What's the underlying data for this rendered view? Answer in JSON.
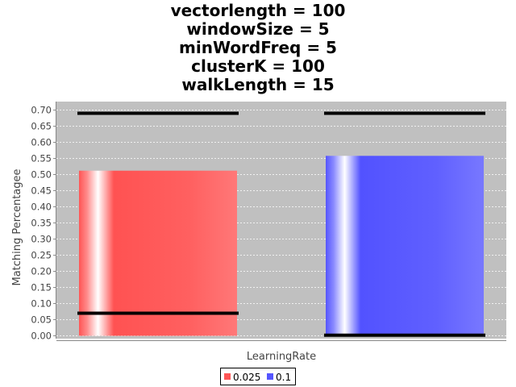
{
  "chart_data": {
    "type": "bar",
    "title_lines": [
      "vectorlength = 100",
      "windowSize = 5",
      "minWordFreq = 5",
      "clusterK = 100",
      "walkLength = 15"
    ],
    "xlabel": "LearningRate",
    "ylabel": "Matching Percentagee",
    "ylim": [
      0,
      0.72
    ],
    "yticks": [
      "0.00",
      "0.05",
      "0.10",
      "0.15",
      "0.20",
      "0.25",
      "0.30",
      "0.35",
      "0.40",
      "0.45",
      "0.50",
      "0.55",
      "0.60",
      "0.65",
      "0.70"
    ],
    "grid": true,
    "legend_position": "bottom",
    "series": [
      {
        "name": "0.025",
        "value": 0.512,
        "error_low": 0.07,
        "error_high": 0.69,
        "color": "#ff5555"
      },
      {
        "name": "0.1",
        "value": 0.558,
        "error_low": 0.002,
        "error_high": 0.69,
        "color": "#5555ff"
      }
    ],
    "plot_background": "#c0c0c0",
    "gridline_color": "#ffffff"
  }
}
